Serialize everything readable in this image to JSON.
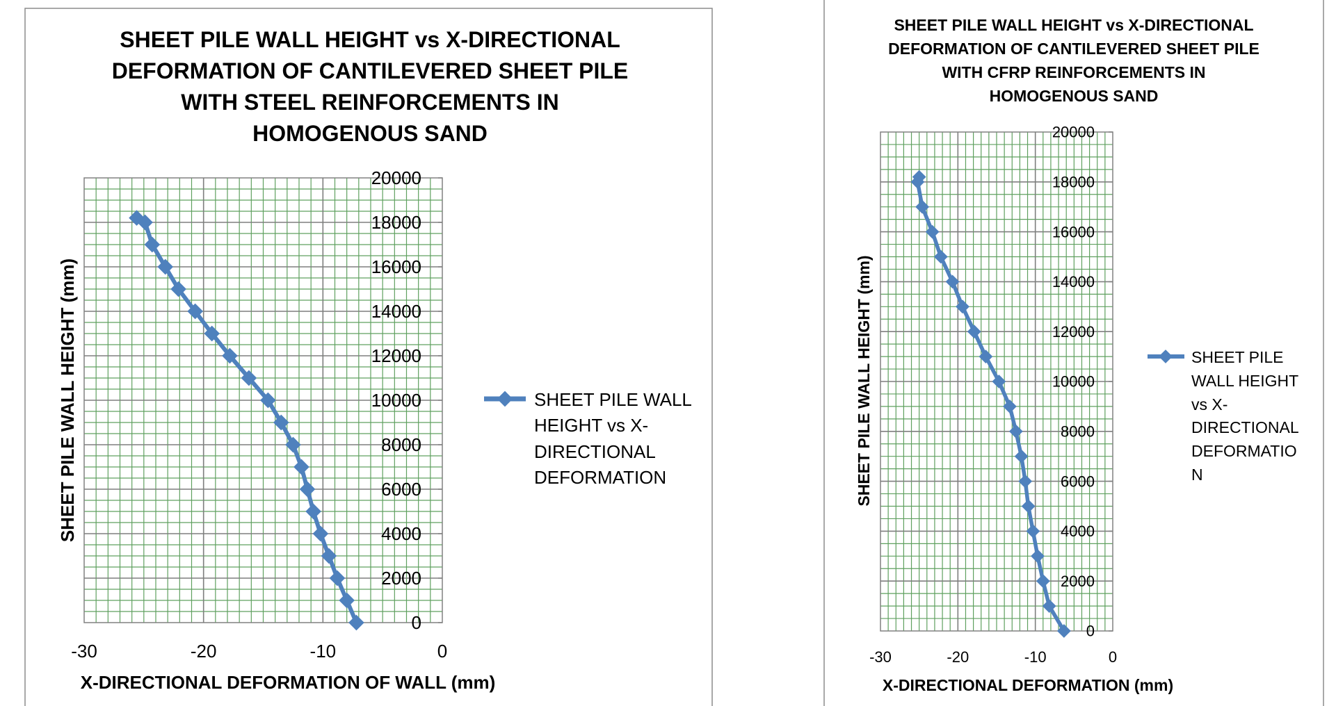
{
  "chart_data": [
    {
      "type": "line",
      "title_lines": [
        "SHEET PILE WALL HEIGHT vs  X-DIRECTIONAL",
        "DEFORMATION OF CANTILEVERED SHEET PILE",
        "WITH STEEL REINFORCEMENTS IN",
        "HOMOGENOUS SAND"
      ],
      "xlabel": "X-DIRECTIONAL DEFORMATION OF WALL (mm)",
      "ylabel": "SHEET PILE WALL HEIGHT (mm)",
      "xlim": [
        -30,
        0
      ],
      "ylim": [
        0,
        20000
      ],
      "x_ticks": [
        "-30",
        "-20",
        "-10",
        "0"
      ],
      "y_ticks": [
        "0",
        "2000",
        "4000",
        "6000",
        "8000",
        "10000",
        "12000",
        "14000",
        "16000",
        "18000",
        "20000"
      ],
      "grid": true,
      "legend_position": "right",
      "legend_lines": [
        "SHEET PILE WALL",
        "HEIGHT vs X-",
        "DIRECTIONAL",
        "DEFORMATION"
      ],
      "series": [
        {
          "name": "SHEET PILE WALL HEIGHT vs X-DIRECTIONAL DEFORMATION",
          "color": "#4f81bd",
          "x": [
            -7.2,
            -8.0,
            -8.8,
            -9.5,
            -10.2,
            -10.8,
            -11.3,
            -11.8,
            -12.5,
            -13.5,
            -14.6,
            -16.2,
            -17.8,
            -19.3,
            -20.7,
            -22.1,
            -23.2,
            -24.3,
            -24.9,
            -25.6
          ],
          "y": [
            0,
            1000,
            2000,
            3000,
            4000,
            5000,
            6000,
            7000,
            8000,
            9000,
            10000,
            11000,
            12000,
            13000,
            14000,
            15000,
            16000,
            17000,
            18000,
            18200
          ]
        }
      ]
    },
    {
      "type": "line",
      "title_lines": [
        "SHEET PILE WALL HEIGHT vs  X-DIRECTIONAL",
        "DEFORMATION OF CANTILEVERED SHEET PILE",
        "WITH CFRP REINFORCEMENTS IN",
        "HOMOGENOUS SAND"
      ],
      "xlabel": "X-DIRECTIONAL DEFORMATION (mm)",
      "ylabel": "SHEET PILE WALL HEIGHT (mm)",
      "xlim": [
        -30,
        0
      ],
      "ylim": [
        0,
        20000
      ],
      "x_ticks": [
        "-30",
        "-20",
        "-10",
        "0"
      ],
      "y_ticks": [
        "0",
        "2000",
        "4000",
        "6000",
        "8000",
        "10000",
        "12000",
        "14000",
        "16000",
        "18000",
        "20000"
      ],
      "grid": true,
      "legend_position": "right",
      "legend_lines": [
        "SHEET PILE",
        "WALL HEIGHT",
        "vs  X-",
        "DIRECTIONAL",
        "DEFORMATIO",
        "N"
      ],
      "series": [
        {
          "name": "SHEET PILE WALL HEIGHT vs  X-DIRECTIONAL DEFORMATION",
          "color": "#4f81bd",
          "x": [
            -6.3,
            -8.2,
            -9.0,
            -9.7,
            -10.3,
            -10.9,
            -11.3,
            -11.8,
            -12.5,
            -13.3,
            -14.7,
            -16.4,
            -17.9,
            -19.4,
            -20.7,
            -22.2,
            -23.3,
            -24.6,
            -25.2,
            -25.0
          ],
          "y": [
            0,
            1000,
            2000,
            3000,
            4000,
            5000,
            6000,
            7000,
            8000,
            9000,
            10000,
            11000,
            12000,
            13000,
            14000,
            15000,
            16000,
            17000,
            18000,
            18200
          ]
        }
      ]
    }
  ]
}
